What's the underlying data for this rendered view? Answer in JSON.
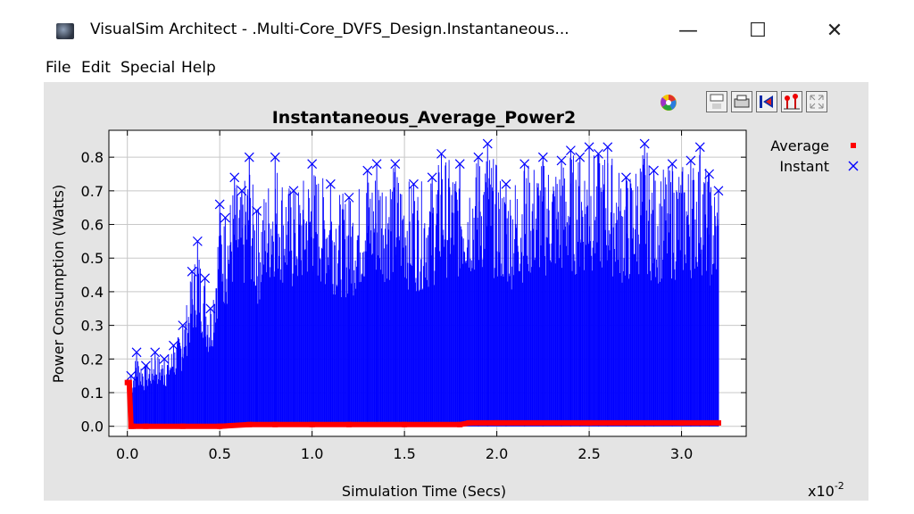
{
  "window": {
    "title": "VisualSim Architect - .Multi-Core_DVFS_Design.Instantaneous...",
    "minimize_glyph": "—",
    "maximize_glyph": "☐",
    "close_glyph": "✕"
  },
  "menu": {
    "items": [
      "File",
      "Edit",
      "Special",
      "Help"
    ]
  },
  "toolbar": {
    "icons": [
      "color-palette-icon",
      "save-icon",
      "print-icon",
      "reset-axes-icon",
      "format-icon",
      "fill-icon"
    ]
  },
  "chart_data": {
    "type": "scatter",
    "title": "Instantaneous_Average_Power2",
    "xlabel": "Simulation Time (Secs)",
    "ylabel": "Power Consumption (Watts)",
    "x_multiplier_label": "x10",
    "x_multiplier_exp": "-2",
    "xlim": [
      -0.1,
      3.35
    ],
    "ylim": [
      -0.03,
      0.88
    ],
    "x_ticks": [
      "0.0",
      "0.5",
      "1.0",
      "1.5",
      "2.0",
      "2.5",
      "3.0"
    ],
    "y_ticks": [
      "0.0",
      "0.1",
      "0.2",
      "0.3",
      "0.4",
      "0.5",
      "0.6",
      "0.7",
      "0.8"
    ],
    "grid": true,
    "legend_position": "top-right",
    "series": [
      {
        "name": "Average",
        "color": "#ff0000",
        "marker": "square",
        "x": [
          0.0,
          0.01,
          0.02,
          0.03,
          0.1,
          0.3,
          0.5,
          0.66,
          0.8,
          1.0,
          1.2,
          1.5,
          1.8,
          1.85,
          2.0,
          2.5,
          3.0,
          3.2
        ],
        "y": [
          0.13,
          0.13,
          0.0,
          0.0,
          0.0,
          0.0,
          0.0,
          0.005,
          0.005,
          0.005,
          0.005,
          0.005,
          0.005,
          0.01,
          0.01,
          0.01,
          0.01,
          0.01
        ]
      },
      {
        "name": "Instant",
        "color": "#0000ff",
        "marker": "x",
        "x": [
          0.02,
          0.05,
          0.1,
          0.15,
          0.2,
          0.25,
          0.3,
          0.35,
          0.38,
          0.42,
          0.45,
          0.5,
          0.53,
          0.58,
          0.62,
          0.66,
          0.7,
          0.8,
          0.9,
          1.0,
          1.1,
          1.2,
          1.3,
          1.35,
          1.45,
          1.55,
          1.65,
          1.7,
          1.8,
          1.9,
          1.95,
          2.05,
          2.15,
          2.25,
          2.35,
          2.4,
          2.45,
          2.5,
          2.55,
          2.6,
          2.7,
          2.8,
          2.85,
          2.95,
          3.05,
          3.1,
          3.15,
          3.2
        ],
        "y": [
          0.15,
          0.22,
          0.18,
          0.22,
          0.2,
          0.24,
          0.3,
          0.46,
          0.55,
          0.44,
          0.35,
          0.66,
          0.62,
          0.74,
          0.7,
          0.8,
          0.64,
          0.8,
          0.7,
          0.78,
          0.72,
          0.68,
          0.76,
          0.78,
          0.78,
          0.72,
          0.74,
          0.81,
          0.78,
          0.8,
          0.84,
          0.72,
          0.78,
          0.8,
          0.79,
          0.82,
          0.8,
          0.83,
          0.81,
          0.83,
          0.74,
          0.84,
          0.76,
          0.78,
          0.79,
          0.83,
          0.75,
          0.7
        ]
      }
    ]
  }
}
